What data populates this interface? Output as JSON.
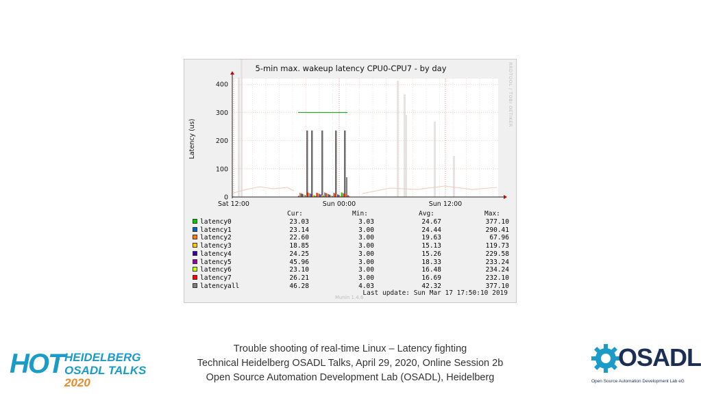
{
  "chart_data": {
    "type": "line",
    "title": "5-min max. wakeup latency CPU0-CPU7 - by day",
    "ylabel": "Latency (us)",
    "xlabel": "",
    "ylim": [
      0,
      420
    ],
    "yticks": [
      "0",
      "100",
      "200",
      "300",
      "400"
    ],
    "xticks": [
      "Sat 12:00",
      "Sun 00:00",
      "Sun 12:00"
    ],
    "threshold": {
      "value": 300,
      "color": "#00a000"
    },
    "legend_headers": {
      "cur": "Cur:",
      "min": "Min:",
      "avg": "Avg:",
      "max": "Max:"
    },
    "series": [
      {
        "name": "latency0",
        "color": "#00cc00",
        "cur": "23.03",
        "min": "3.03",
        "avg": "24.67",
        "max": "377.10"
      },
      {
        "name": "latency1",
        "color": "#0066b3",
        "cur": "23.14",
        "min": "3.00",
        "avg": "24.44",
        "max": "290.41"
      },
      {
        "name": "latency2",
        "color": "#ff8000",
        "cur": "22.60",
        "min": "3.00",
        "avg": "19.63",
        "max": "67.96"
      },
      {
        "name": "latency3",
        "color": "#ffcc00",
        "cur": "18.85",
        "min": "3.00",
        "avg": "15.13",
        "max": "119.73"
      },
      {
        "name": "latency4",
        "color": "#330099",
        "cur": "24.25",
        "min": "3.00",
        "avg": "15.26",
        "max": "229.58"
      },
      {
        "name": "latency5",
        "color": "#990099",
        "cur": "45.96",
        "min": "3.00",
        "avg": "18.33",
        "max": "233.24"
      },
      {
        "name": "latency6",
        "color": "#ccff00",
        "cur": "23.10",
        "min": "3.00",
        "avg": "16.48",
        "max": "234.24"
      },
      {
        "name": "latency7",
        "color": "#ff0000",
        "cur": "26.21",
        "min": "3.00",
        "avg": "16.69",
        "max": "232.10"
      },
      {
        "name": "latencyall",
        "color": "#808080",
        "cur": "46.28",
        "min": "4.03",
        "avg": "42.32",
        "max": "377.10"
      }
    ],
    "visible_spikes": [
      {
        "series": "latencyall",
        "x": "Sat 23:10",
        "y": 236
      },
      {
        "series": "latencyall",
        "x": "Sat 23:40",
        "y": 236
      },
      {
        "series": "latencyall",
        "x": "Sun 00:40",
        "y": 236
      },
      {
        "series": "latencyall",
        "x": "Sun 01:40",
        "y": 236
      },
      {
        "series": "latencyall",
        "x": "Sun 02:40",
        "y": 236
      }
    ],
    "last_update": "Last update: Sun Mar 17 17:50:10 2019",
    "software": "Munin 1.4.6",
    "watermark": "RRDTOOL / TOBI OETIKER"
  },
  "footer": {
    "line1": "Trouble shooting of real-time Linux – Latency fighting",
    "line2": "Technical Heidelberg OSADL Talks, April 29, 2020, Online Session 2b",
    "line3": "Open Source Automation Development Lab (OSADL), Heidelberg"
  },
  "hot_logo": {
    "mark": "HOT",
    "line1": "HEIDELBERG",
    "line2a": "OSADL TALKS",
    "line2b": "2020"
  },
  "osadl_logo": {
    "word": "OSADL",
    "subtitle": "Open Source Automation Development Lab eG"
  }
}
